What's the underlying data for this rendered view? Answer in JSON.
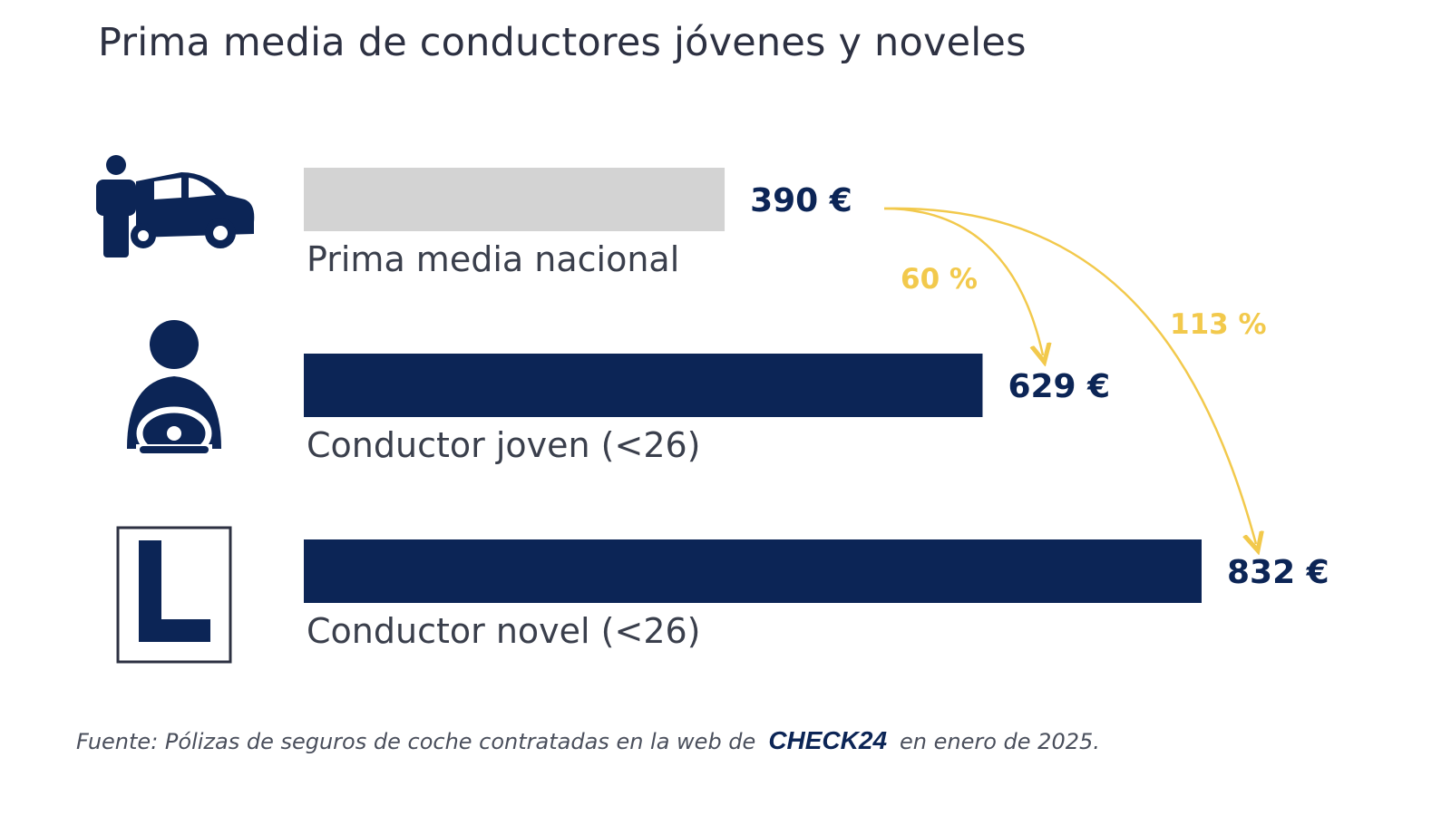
{
  "chart_data": {
    "type": "bar",
    "orientation": "horizontal",
    "title": "Prima media de conductores jóvenes y noveles",
    "categories": [
      "Prima media nacional",
      "Conductor joven (<26)",
      "Conductor novel (<26)"
    ],
    "values": [
      390,
      629,
      832
    ],
    "value_labels": [
      "390 €",
      "629 €",
      "832 €"
    ],
    "icons": [
      "person-with-car-icon",
      "young-driver-steering-wheel-icon",
      "novice-l-plate-icon"
    ],
    "bar_colors": [
      "#d3d3d3",
      "#0c2556",
      "#0c2556"
    ],
    "annotations": [
      {
        "from": "Prima media nacional",
        "to": "Conductor joven (<26)",
        "label": "60 %"
      },
      {
        "from": "Prima media nacional",
        "to": "Conductor novel (<26)",
        "label": "113 %"
      }
    ],
    "annotation_color": "#f2c94c",
    "grid": false,
    "axes_visible": false
  },
  "source": {
    "prefix": "Fuente: Pólizas de seguros de coche contratadas en la web de",
    "brand": "CHECK24",
    "suffix": "en enero de 2025."
  }
}
